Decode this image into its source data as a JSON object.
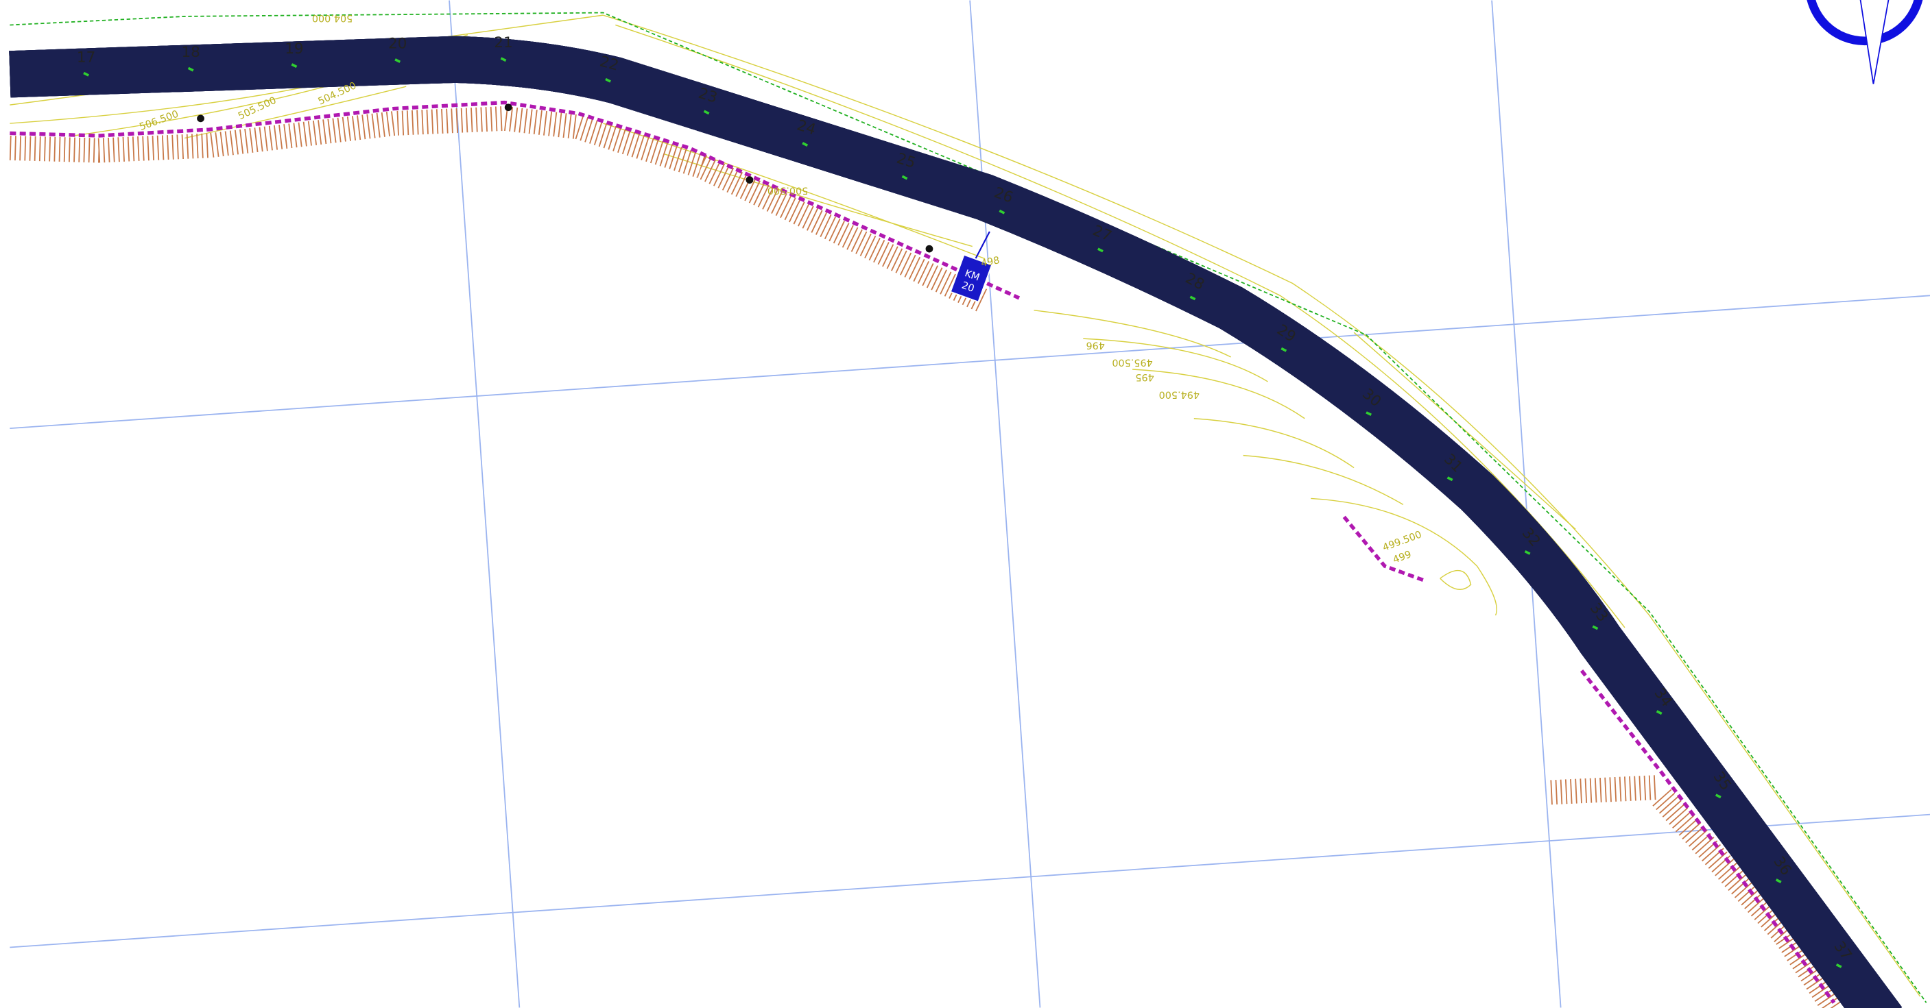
{
  "stations": [
    17,
    18,
    19,
    20,
    21,
    22,
    23,
    24,
    25,
    26,
    27,
    28,
    29,
    30,
    31,
    32,
    33,
    34,
    35,
    36,
    37
  ],
  "contours": [
    "504.000",
    "506.500",
    "505.500",
    "504.500",
    "500.500",
    "496",
    "495.500",
    "495",
    "494.500",
    "499.500",
    "499",
    "498"
  ],
  "sign": {
    "line1": "KM",
    "line2": "20"
  }
}
